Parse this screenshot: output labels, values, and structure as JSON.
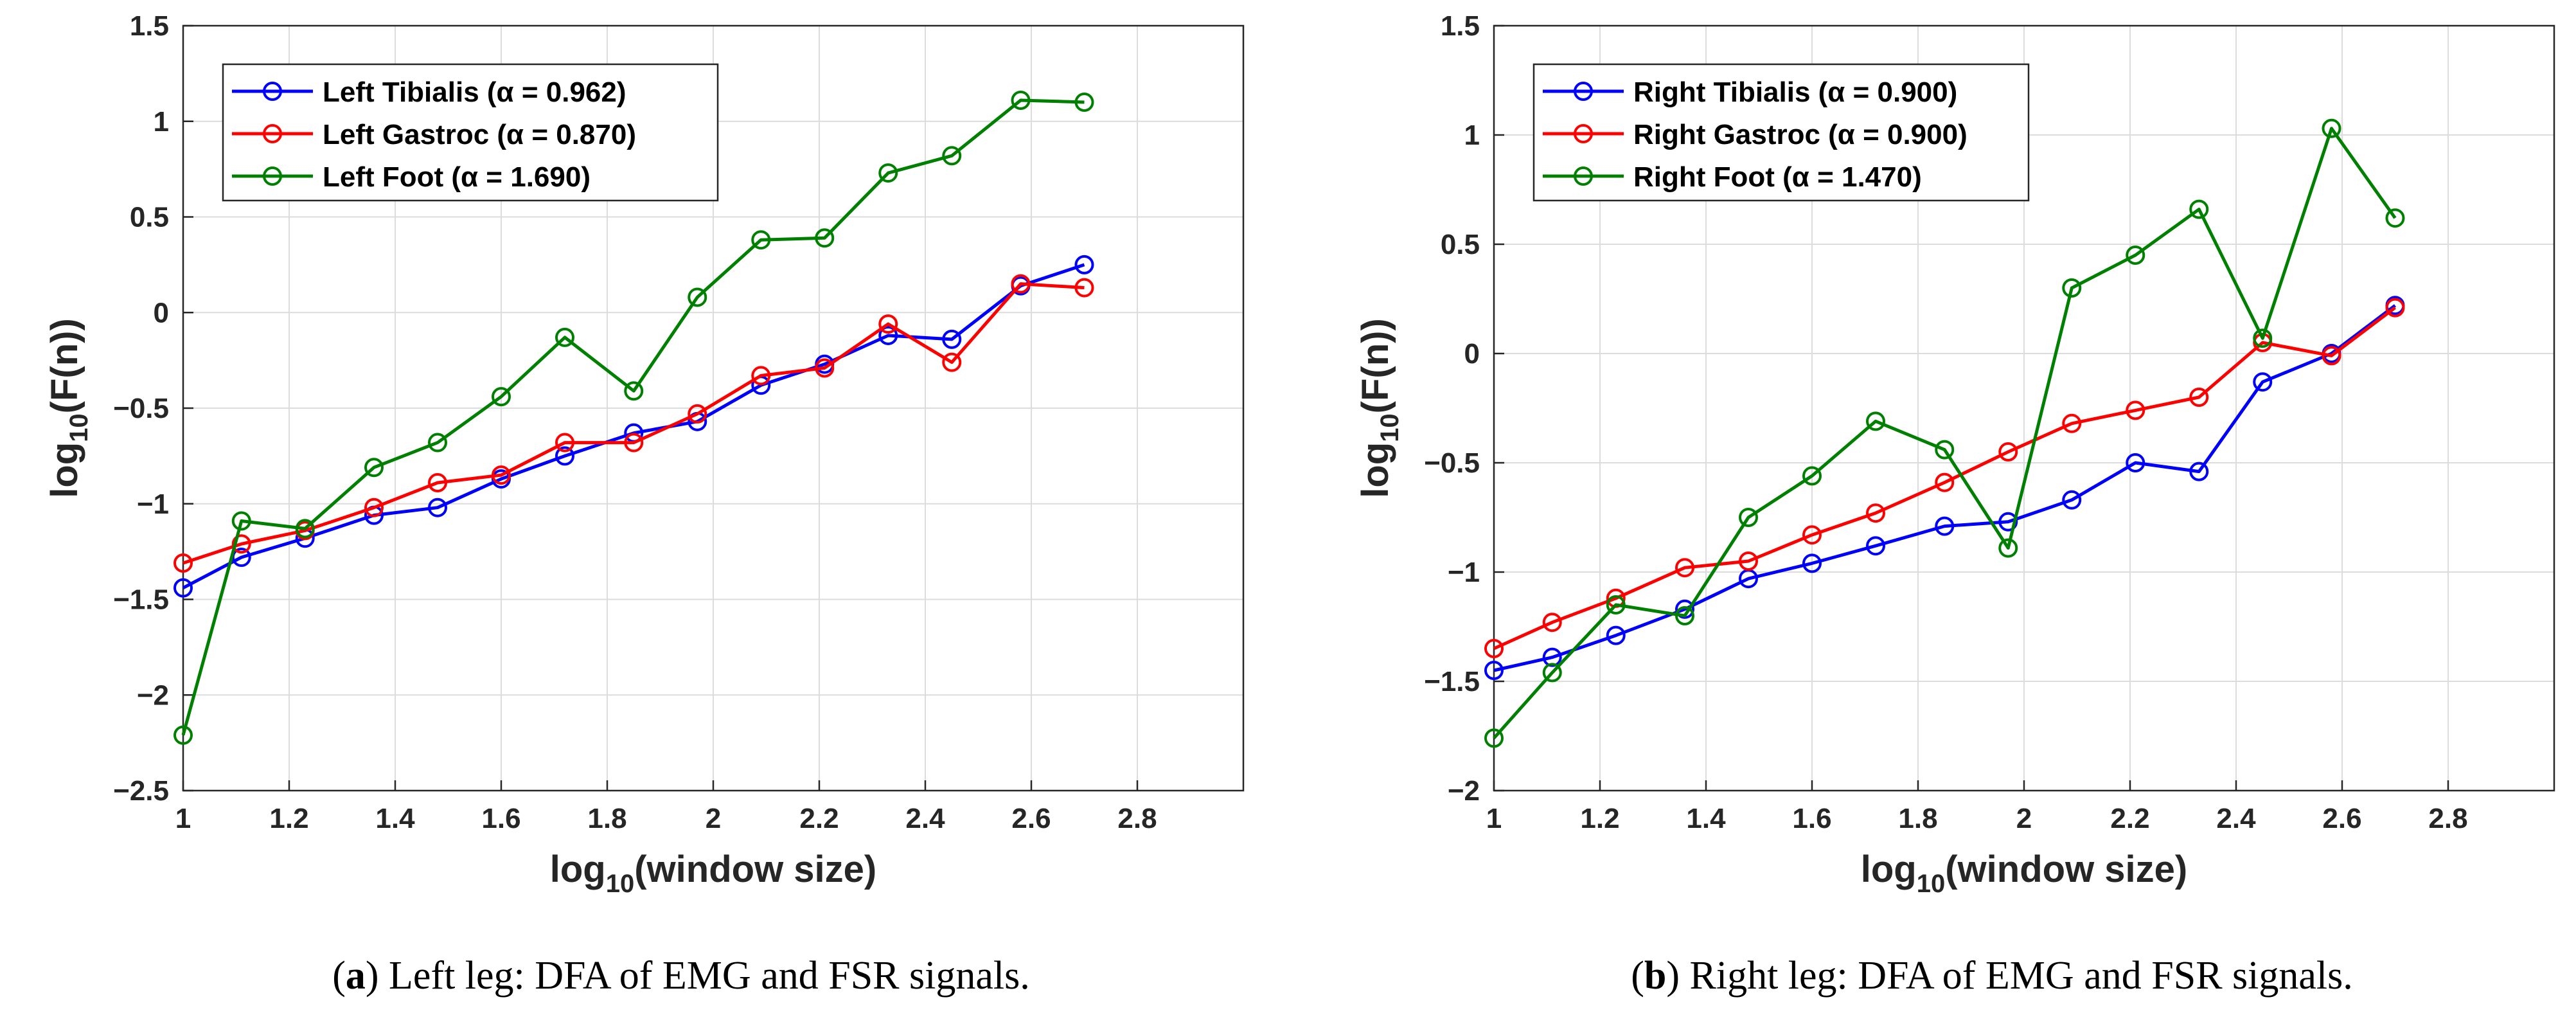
{
  "chart_data": [
    {
      "type": "line",
      "caption_letter": "a",
      "caption_text": "Left leg: DFA of EMG and FSR signals.",
      "xlabel": "log10(window size)",
      "ylabel": "log10(F(n))",
      "xlim": [
        1,
        3
      ],
      "ylim": [
        -2.5,
        1.5
      ],
      "xticks": [
        1,
        1.2,
        1.4,
        1.6,
        1.8,
        2,
        2.2,
        2.4,
        2.6,
        2.8
      ],
      "xtick_labels": [
        "1",
        "1.2",
        "1.4",
        "1.6",
        "1.8",
        "2",
        "2.2",
        "2.4",
        "2.6",
        "2.8"
      ],
      "yticks": [
        -2.5,
        -2,
        -1.5,
        -1,
        -0.5,
        0,
        0.5,
        1,
        1.5
      ],
      "ytick_labels": [
        "−2.5",
        "−2",
        "−1.5",
        "−1",
        "−0.5",
        "0",
        "0.5",
        "1",
        "1.5"
      ],
      "grid": true,
      "legend_position": "top-left",
      "x": [
        1.0,
        1.11,
        1.23,
        1.36,
        1.48,
        1.6,
        1.72,
        1.85,
        1.97,
        2.09,
        2.21,
        2.33,
        2.45,
        2.58,
        2.7
      ],
      "series": [
        {
          "name": "Left Tibialis (α = 0.962)",
          "color": "#0000ff",
          "values": [
            -1.44,
            -1.28,
            -1.18,
            -1.06,
            -1.02,
            -0.87,
            -0.75,
            -0.63,
            -0.57,
            -0.38,
            -0.27,
            -0.12,
            -0.14,
            0.14,
            0.25
          ]
        },
        {
          "name": "Left Gastroc (α = 0.870)",
          "color": "#ff0000",
          "values": [
            -1.31,
            -1.21,
            -1.14,
            -1.02,
            -0.89,
            -0.85,
            -0.68,
            -0.68,
            -0.53,
            -0.33,
            -0.29,
            -0.06,
            -0.26,
            0.15,
            0.13
          ]
        },
        {
          "name": "Left Foot (α = 1.690)",
          "color": "#008000",
          "values": [
            -2.21,
            -1.09,
            -1.13,
            -0.81,
            -0.68,
            -0.44,
            -0.13,
            -0.41,
            0.08,
            0.38,
            0.39,
            0.73,
            0.82,
            1.11,
            1.1
          ]
        }
      ]
    },
    {
      "type": "line",
      "caption_letter": "b",
      "caption_text": "Right leg: DFA of EMG and FSR signals.",
      "xlabel": "log10(window size)",
      "ylabel": "log10(F(n))",
      "xlim": [
        1,
        3
      ],
      "ylim": [
        -2,
        1.5
      ],
      "xticks": [
        1,
        1.2,
        1.4,
        1.6,
        1.8,
        2,
        2.2,
        2.4,
        2.6,
        2.8
      ],
      "xtick_labels": [
        "1",
        "1.2",
        "1.4",
        "1.6",
        "1.8",
        "2",
        "2.2",
        "2.4",
        "2.6",
        "2.8"
      ],
      "yticks": [
        -2,
        -1.5,
        -1,
        -0.5,
        0,
        0.5,
        1,
        1.5
      ],
      "ytick_labels": [
        "−2",
        "−1.5",
        "−1",
        "−0.5",
        "0",
        "0.5",
        "1",
        "1.5"
      ],
      "grid": true,
      "legend_position": "top-left",
      "x": [
        1.0,
        1.11,
        1.23,
        1.36,
        1.48,
        1.6,
        1.72,
        1.85,
        1.97,
        2.09,
        2.21,
        2.33,
        2.45,
        2.58,
        2.7
      ],
      "series": [
        {
          "name": "Right Tibialis (α = 0.900)",
          "color": "#0000ff",
          "values": [
            -1.45,
            -1.39,
            -1.29,
            -1.17,
            -1.03,
            -0.96,
            -0.88,
            -0.79,
            -0.77,
            -0.67,
            -0.5,
            -0.54,
            -0.13,
            0.0,
            0.22
          ]
        },
        {
          "name": "Right Gastroc (α = 0.900)",
          "color": "#ff0000",
          "values": [
            -1.35,
            -1.23,
            -1.12,
            -0.98,
            -0.95,
            -0.83,
            -0.73,
            -0.59,
            -0.45,
            -0.32,
            -0.26,
            -0.2,
            0.05,
            -0.01,
            0.21
          ]
        },
        {
          "name": "Right Foot (α = 1.470)",
          "color": "#008000",
          "values": [
            -1.76,
            -1.46,
            -1.15,
            -1.2,
            -0.75,
            -0.56,
            -0.31,
            -0.44,
            -0.89,
            0.3,
            0.45,
            0.66,
            0.07,
            1.03,
            0.62
          ]
        }
      ]
    }
  ]
}
